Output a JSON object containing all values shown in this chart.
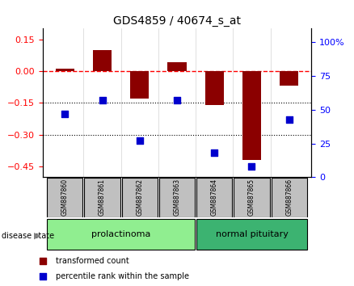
{
  "title": "GDS4859 / 40674_s_at",
  "samples": [
    "GSM887860",
    "GSM887861",
    "GSM887862",
    "GSM887863",
    "GSM887864",
    "GSM887865",
    "GSM887866"
  ],
  "bar_values": [
    0.01,
    0.1,
    -0.13,
    0.04,
    -0.16,
    -0.42,
    -0.07
  ],
  "scatter_values": [
    47,
    57,
    27,
    57,
    18,
    8,
    43
  ],
  "bar_color": "#8B0000",
  "scatter_color": "#0000CD",
  "ylim_left": [
    -0.5,
    0.2
  ],
  "yticks_left": [
    0.15,
    0.0,
    -0.15,
    -0.3,
    -0.45
  ],
  "ylim_right": [
    0,
    110
  ],
  "yticks_right": [
    100,
    75,
    50,
    25,
    0
  ],
  "ytick_labels_right": [
    "100%",
    "75",
    "50",
    "25",
    "0"
  ],
  "hline_y": 0.0,
  "dotted_lines": [
    -0.15,
    -0.3
  ],
  "group1_label": "prolactinoma",
  "group2_label": "normal pituitary",
  "group1_indices": [
    0,
    1,
    2,
    3
  ],
  "group2_indices": [
    4,
    5,
    6
  ],
  "disease_state_label": "disease state",
  "legend_entries": [
    "transformed count",
    "percentile rank within the sample"
  ],
  "group1_color": "#90EE90",
  "group2_color": "#3CB371",
  "sample_box_color": "#C0C0C0",
  "background_color": "#FFFFFF"
}
